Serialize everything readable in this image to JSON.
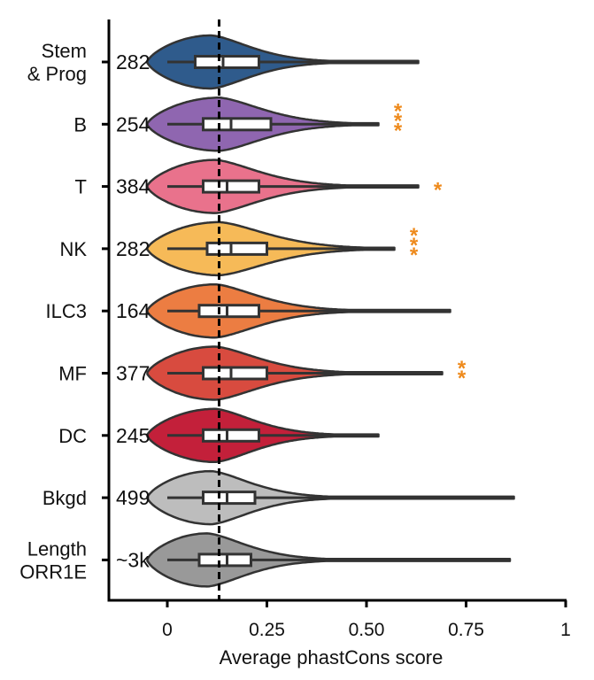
{
  "chart_data": {
    "type": "violin",
    "xlabel": "Average phastCons score",
    "xlim": [
      -0.15,
      1.0
    ],
    "xticks": [
      0,
      0.25,
      0.5,
      0.75,
      1
    ],
    "xtick_labels": [
      "0",
      "0.25",
      "0.50",
      "0.75",
      "1"
    ],
    "reference_line": 0.13,
    "significance_color": "#f08a1c",
    "categories": [
      {
        "label": [
          "Stem",
          "& Prog"
        ],
        "count": "282",
        "color": "#2f5b8c",
        "q1": 0.07,
        "median": 0.14,
        "q3": 0.23,
        "min": 0.0,
        "max": 0.63,
        "mode": 0.11,
        "spread": 0.09,
        "significance": ""
      },
      {
        "label": [
          "B"
        ],
        "count": "254",
        "color": "#8f66b0",
        "q1": 0.09,
        "median": 0.16,
        "q3": 0.26,
        "min": 0.0,
        "max": 0.53,
        "mode": 0.13,
        "spread": 0.1,
        "significance": "***"
      },
      {
        "label": [
          "T"
        ],
        "count": "384",
        "color": "#e9728c",
        "q1": 0.09,
        "median": 0.15,
        "q3": 0.23,
        "min": 0.0,
        "max": 0.63,
        "mode": 0.12,
        "spread": 0.1,
        "significance": "*"
      },
      {
        "label": [
          "NK"
        ],
        "count": "282",
        "color": "#f6ba58",
        "q1": 0.1,
        "median": 0.16,
        "q3": 0.25,
        "min": 0.0,
        "max": 0.57,
        "mode": 0.13,
        "spread": 0.11,
        "significance": "***"
      },
      {
        "label": [
          "ILC3"
        ],
        "count": "164",
        "color": "#ec7d42",
        "q1": 0.08,
        "median": 0.15,
        "q3": 0.23,
        "min": 0.0,
        "max": 0.71,
        "mode": 0.12,
        "spread": 0.1,
        "significance": ""
      },
      {
        "label": [
          "MF"
        ],
        "count": "377",
        "color": "#d84b3f",
        "q1": 0.09,
        "median": 0.16,
        "q3": 0.25,
        "min": 0.0,
        "max": 0.69,
        "mode": 0.12,
        "spread": 0.1,
        "significance": "**"
      },
      {
        "label": [
          "DC"
        ],
        "count": "245",
        "color": "#c3203a",
        "q1": 0.09,
        "median": 0.15,
        "q3": 0.23,
        "min": 0.0,
        "max": 0.53,
        "mode": 0.12,
        "spread": 0.09,
        "significance": ""
      },
      {
        "label": [
          "Bkgd"
        ],
        "count": "499",
        "color": "#bdbdbd",
        "q1": 0.09,
        "median": 0.15,
        "q3": 0.22,
        "min": 0.0,
        "max": 0.87,
        "mode": 0.11,
        "spread": 0.09,
        "significance": ""
      },
      {
        "label": [
          "Length",
          "ORR1E"
        ],
        "count": "~3k",
        "color": "#999999",
        "q1": 0.08,
        "median": 0.15,
        "q3": 0.21,
        "min": 0.0,
        "max": 0.86,
        "mode": 0.1,
        "spread": 0.09,
        "significance": ""
      }
    ]
  }
}
